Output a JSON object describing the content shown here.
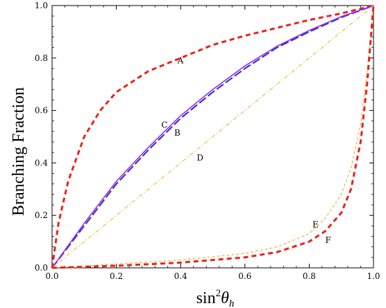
{
  "chart_data": {
    "type": "line",
    "title": "",
    "ylabel": "Branching Fraction",
    "xlabel": {
      "base": "sin",
      "sup": "2",
      "theta": "θ",
      "sub": "h"
    },
    "xlim": [
      0,
      1
    ],
    "ylim": [
      0,
      1
    ],
    "xticks": [
      "0.0",
      "0.2",
      "0.4",
      "0.6",
      "0.8",
      "1.0"
    ],
    "yticks": [
      "0.0",
      "0.2",
      "0.4",
      "0.6",
      "0.8",
      "1.0"
    ],
    "grid": false,
    "series": [
      {
        "name": "A",
        "color": "#e8221b",
        "dash": "dashed-thick",
        "x": [
          0,
          0.02,
          0.05,
          0.1,
          0.15,
          0.2,
          0.3,
          0.4,
          0.5,
          0.6,
          0.7,
          0.8,
          0.9,
          1.0
        ],
        "y": [
          0,
          0.17,
          0.33,
          0.5,
          0.6,
          0.67,
          0.75,
          0.8,
          0.85,
          0.885,
          0.915,
          0.945,
          0.97,
          1.0
        ]
      },
      {
        "name": "B",
        "color": "#3a2fd6",
        "dash": "dashed",
        "x": [
          0,
          0.1,
          0.2,
          0.3,
          0.4,
          0.5,
          0.6,
          0.7,
          0.8,
          0.9,
          1.0
        ],
        "y": [
          0,
          0.16,
          0.32,
          0.45,
          0.57,
          0.67,
          0.76,
          0.84,
          0.9,
          0.955,
          1.0
        ]
      },
      {
        "name": "C",
        "color": "#9b2fd9",
        "dash": "solid",
        "x": [
          0,
          0.1,
          0.2,
          0.3,
          0.4,
          0.5,
          0.6,
          0.7,
          0.8,
          0.9,
          1.0
        ],
        "y": [
          0,
          0.17,
          0.33,
          0.46,
          0.58,
          0.68,
          0.77,
          0.845,
          0.905,
          0.958,
          1.0
        ]
      },
      {
        "name": "D",
        "color": "#f0b43c",
        "dash": "dashdot",
        "x": [
          0,
          1.0
        ],
        "y": [
          0,
          1.0
        ]
      },
      {
        "name": "E",
        "color": "#f0b43c",
        "dash": "dashed-thin",
        "x": [
          0,
          0.2,
          0.4,
          0.6,
          0.7,
          0.8,
          0.85,
          0.9,
          0.93,
          0.96,
          0.98,
          1.0
        ],
        "y": [
          0,
          0.015,
          0.03,
          0.055,
          0.08,
          0.13,
          0.19,
          0.28,
          0.38,
          0.55,
          0.75,
          1.0
        ]
      },
      {
        "name": "F",
        "color": "#e8221b",
        "dash": "dashed-thick",
        "x": [
          0,
          0.2,
          0.4,
          0.6,
          0.7,
          0.8,
          0.85,
          0.9,
          0.93,
          0.96,
          0.98,
          1.0
        ],
        "y": [
          0,
          0.008,
          0.02,
          0.04,
          0.06,
          0.1,
          0.14,
          0.21,
          0.3,
          0.48,
          0.7,
          1.0
        ]
      }
    ],
    "annotations": [
      {
        "text": "A",
        "x": 0.39,
        "y": 0.79
      },
      {
        "text": "C",
        "x": 0.34,
        "y": 0.545
      },
      {
        "text": "B",
        "x": 0.38,
        "y": 0.515
      },
      {
        "text": "D",
        "x": 0.45,
        "y": 0.42
      },
      {
        "text": "E",
        "x": 0.81,
        "y": 0.165
      },
      {
        "text": "F",
        "x": 0.85,
        "y": 0.105
      }
    ]
  }
}
